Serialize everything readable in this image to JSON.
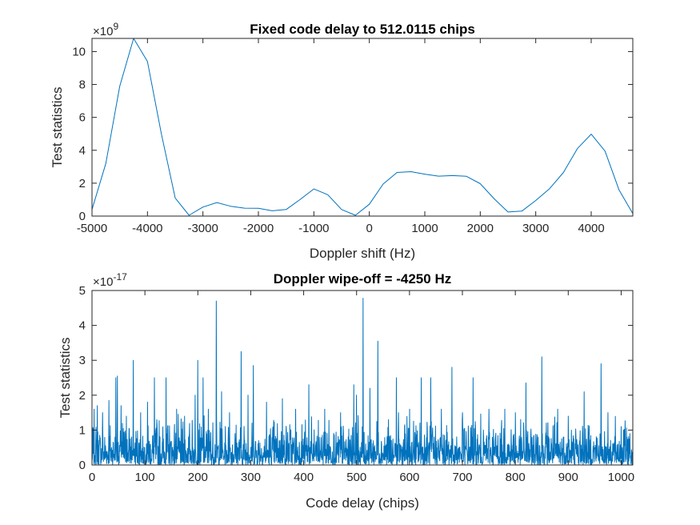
{
  "chart_data": [
    {
      "type": "line",
      "title": "Fixed code delay to 512.0115 chips",
      "xlabel": "Doppler shift (Hz)",
      "ylabel": "Test statistics",
      "y_exponent_base": "×10",
      "y_exponent_power": "9",
      "xlim": [
        -5000,
        4750
      ],
      "ylim": [
        0,
        10.8
      ],
      "xticks": [
        -5000,
        -4000,
        -3000,
        -2000,
        -1000,
        0,
        1000,
        2000,
        3000,
        4000
      ],
      "xtick_labels": [
        "-5000",
        "-4000",
        "-3000",
        "-2000",
        "-1000",
        "0",
        "1000",
        "2000",
        "3000",
        "4000"
      ],
      "yticks": [
        0,
        2,
        4,
        6,
        8,
        10
      ],
      "ytick_labels": [
        "0",
        "2",
        "4",
        "6",
        "8",
        "10"
      ],
      "grid": false,
      "color": "#0072bd",
      "series": [
        {
          "x": [
            -5000,
            -4750,
            -4500,
            -4250,
            -4000,
            -3750,
            -3500,
            -3250,
            -3000,
            -2750,
            -2500,
            -2250,
            -2000,
            -1750,
            -1500,
            -1250,
            -1000,
            -750,
            -500,
            -250,
            0,
            250,
            500,
            750,
            1000,
            1250,
            1500,
            1750,
            2000,
            2250,
            2500,
            2750,
            3000,
            3250,
            3500,
            3750,
            4000,
            4250,
            4500,
            4750
          ],
          "values": [
            0.4,
            3.2,
            7.9,
            10.8,
            9.4,
            5.0,
            1.1,
            0.05,
            0.55,
            0.82,
            0.6,
            0.48,
            0.47,
            0.32,
            0.4,
            1.0,
            1.65,
            1.3,
            0.4,
            0.05,
            0.72,
            1.95,
            2.65,
            2.7,
            2.55,
            2.43,
            2.46,
            2.42,
            1.97,
            1.05,
            0.25,
            0.3,
            0.95,
            1.67,
            2.65,
            4.1,
            4.98,
            3.95,
            1.6,
            0.15
          ]
        }
      ]
    },
    {
      "type": "line",
      "title": "Doppler wipe-off = -4250 Hz",
      "xlabel": "Code delay (chips)",
      "ylabel": "Test statistics",
      "y_exponent_base": "×10",
      "y_exponent_power": "-17",
      "xlim": [
        0,
        1022
      ],
      "ylim": [
        0,
        5
      ],
      "xticks": [
        0,
        100,
        200,
        300,
        400,
        500,
        600,
        700,
        800,
        900,
        1000
      ],
      "xtick_labels": [
        "0",
        "100",
        "200",
        "300",
        "400",
        "500",
        "600",
        "700",
        "800",
        "900",
        "1000"
      ],
      "yticks": [
        0,
        1,
        2,
        3,
        4,
        5
      ],
      "ytick_labels": [
        "0",
        "1",
        "2",
        "3",
        "4",
        "5"
      ],
      "grid": false,
      "color": "#0072bd",
      "noise_samples": 2046,
      "noise_seed": 7,
      "noise_mean": 0.45,
      "series": [
        {
          "x": [
            4,
            10,
            20,
            32,
            45,
            48,
            55,
            65,
            78,
            92,
            105,
            118,
            140,
            160,
            175,
            195,
            200,
            210,
            220,
            235,
            245,
            260,
            282,
            295,
            305,
            330,
            360,
            385,
            410,
            440,
            470,
            495,
            500,
            512,
            525,
            540,
            560,
            575,
            600,
            622,
            640,
            660,
            680,
            700,
            720,
            750,
            780,
            800,
            820,
            850,
            880,
            900,
            930,
            962,
            975,
            1000
          ],
          "values": [
            1.6,
            1.7,
            1.5,
            1.85,
            2.5,
            2.55,
            1.7,
            1.4,
            3.0,
            1.5,
            1.8,
            2.5,
            2.5,
            1.6,
            1.4,
            2.0,
            3.0,
            2.5,
            1.6,
            4.7,
            2.1,
            1.5,
            3.25,
            2.0,
            2.85,
            1.8,
            1.9,
            1.6,
            2.3,
            1.6,
            1.5,
            2.3,
            2.0,
            4.78,
            2.2,
            3.55,
            1.3,
            2.5,
            1.6,
            2.5,
            2.5,
            1.6,
            2.8,
            1.5,
            2.5,
            1.6,
            1.6,
            1.5,
            2.35,
            3.1,
            1.6,
            1.4,
            2.1,
            2.9,
            1.5,
            1.1
          ]
        }
      ]
    }
  ]
}
